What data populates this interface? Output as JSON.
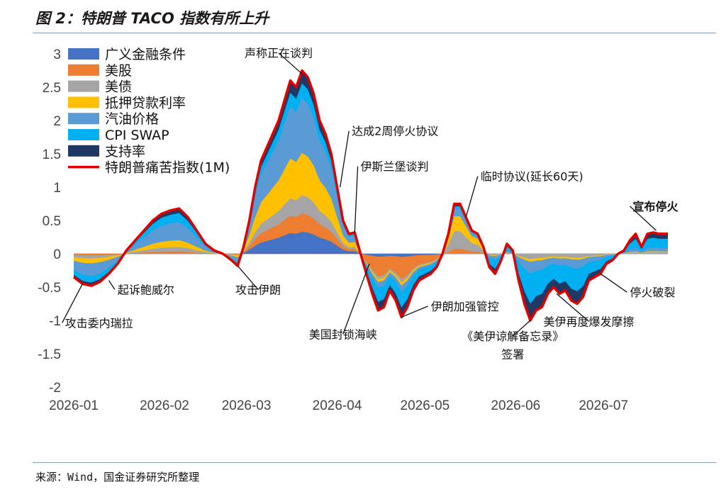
{
  "figure": {
    "title": "图 2：特朗普 TACO 指数有所上升",
    "source": "来源：Wind，国金证券研究所整理"
  },
  "chart_data": {
    "type": "area",
    "ylim": [
      -2,
      3
    ],
    "yticks": [
      "3",
      "2.5",
      "2",
      "1.5",
      "1",
      "0.5",
      "0",
      "-0.5",
      "-1",
      "-1.5",
      "-2"
    ],
    "ytick_values": [
      3,
      2.5,
      2,
      1.5,
      1,
      0.5,
      0,
      -0.5,
      -1,
      -1.5,
      -2
    ],
    "xlim": [
      0,
      203
    ],
    "xticks": [
      {
        "label": "2026-01",
        "x": 0
      },
      {
        "label": "2026-02",
        "x": 31
      },
      {
        "label": "2026-03",
        "x": 59
      },
      {
        "label": "2026-04",
        "x": 90
      },
      {
        "label": "2026-05",
        "x": 120
      },
      {
        "label": "2026-06",
        "x": 151
      },
      {
        "label": "2026-07",
        "x": 181
      }
    ],
    "legend": [
      {
        "name": "广义金融条件",
        "color": "#4472c4"
      },
      {
        "name": "美股",
        "color": "#ed7d31"
      },
      {
        "name": "美债",
        "color": "#a5a5a5"
      },
      {
        "name": "抵押贷款利率",
        "color": "#ffc000"
      },
      {
        "name": "汽油价格",
        "color": "#5b9bd5"
      },
      {
        "name": "CPI SWAP",
        "color": "#00b0f0"
      },
      {
        "name": "支持率",
        "color": "#203864"
      },
      {
        "name": "特朗普痛苦指数(1M)",
        "color": "#e00000",
        "kind": "line"
      }
    ],
    "legend_position": "top-left",
    "total_series_name": "特朗普痛苦指数(1M)",
    "total": [
      [
        0,
        -0.35
      ],
      [
        3,
        -0.45
      ],
      [
        6,
        -0.48
      ],
      [
        9,
        -0.42
      ],
      [
        12,
        -0.3
      ],
      [
        15,
        -0.15
      ],
      [
        18,
        0.05
      ],
      [
        21,
        0.2
      ],
      [
        24,
        0.35
      ],
      [
        27,
        0.5
      ],
      [
        30,
        0.6
      ],
      [
        33,
        0.65
      ],
      [
        36,
        0.68
      ],
      [
        39,
        0.55
      ],
      [
        42,
        0.35
      ],
      [
        45,
        0.15
      ],
      [
        48,
        0.05
      ],
      [
        51,
        0.0
      ],
      [
        54,
        -0.1
      ],
      [
        56,
        -0.18
      ],
      [
        58,
        0.1
      ],
      [
        60,
        0.5
      ],
      [
        62,
        1.0
      ],
      [
        64,
        1.4
      ],
      [
        66,
        1.6
      ],
      [
        68,
        1.8
      ],
      [
        70,
        2.0
      ],
      [
        72,
        2.3
      ],
      [
        74,
        2.6
      ],
      [
        76,
        2.5
      ],
      [
        78,
        2.75
      ],
      [
        80,
        2.65
      ],
      [
        82,
        2.4
      ],
      [
        84,
        2.0
      ],
      [
        86,
        1.8
      ],
      [
        88,
        1.5
      ],
      [
        90,
        1.0
      ],
      [
        92,
        0.5
      ],
      [
        94,
        0.3
      ],
      [
        96,
        0.32
      ],
      [
        98,
        0.0
      ],
      [
        100,
        -0.3
      ],
      [
        102,
        -0.6
      ],
      [
        104,
        -0.85
      ],
      [
        106,
        -0.8
      ],
      [
        108,
        -0.55
      ],
      [
        110,
        -0.7
      ],
      [
        112,
        -0.95
      ],
      [
        114,
        -0.8
      ],
      [
        116,
        -0.55
      ],
      [
        118,
        -0.4
      ],
      [
        120,
        -0.35
      ],
      [
        122,
        -0.3
      ],
      [
        124,
        -0.2
      ],
      [
        126,
        0.0
      ],
      [
        128,
        0.3
      ],
      [
        130,
        0.75
      ],
      [
        132,
        0.75
      ],
      [
        134,
        0.55
      ],
      [
        136,
        0.35
      ],
      [
        138,
        0.3
      ],
      [
        140,
        0.1
      ],
      [
        142,
        -0.2
      ],
      [
        144,
        -0.3
      ],
      [
        146,
        -0.1
      ],
      [
        148,
        0.15
      ],
      [
        150,
        0.05
      ],
      [
        152,
        -0.4
      ],
      [
        154,
        -0.75
      ],
      [
        156,
        -1.0
      ],
      [
        158,
        -0.85
      ],
      [
        160,
        -0.8
      ],
      [
        162,
        -0.6
      ],
      [
        164,
        -0.5
      ],
      [
        166,
        -0.6
      ],
      [
        168,
        -0.55
      ],
      [
        170,
        -0.7
      ],
      [
        172,
        -0.75
      ],
      [
        174,
        -0.65
      ],
      [
        176,
        -0.4
      ],
      [
        178,
        -0.35
      ],
      [
        180,
        -0.3
      ],
      [
        182,
        -0.15
      ],
      [
        184,
        -0.1
      ],
      [
        186,
        0.0
      ],
      [
        188,
        0.05
      ],
      [
        190,
        0.2
      ],
      [
        192,
        0.3
      ],
      [
        194,
        0.1
      ],
      [
        196,
        0.3
      ],
      [
        198,
        0.32
      ],
      [
        200,
        0.3
      ],
      [
        203,
        0.3
      ]
    ],
    "annotations": [
      {
        "text": "声称正在谈判",
        "x": 78,
        "y": 2.7,
        "tx": 70,
        "ty": 2.95,
        "anchor": "middle",
        "bold": false
      },
      {
        "text": "达成2周停火协议",
        "x": 91,
        "y": 1.0,
        "tx": 95,
        "ty": 1.78,
        "anchor": "start",
        "bold": false
      },
      {
        "text": "伊斯兰堡谈判",
        "x": 96,
        "y": 0.32,
        "tx": 98,
        "ty": 1.25,
        "anchor": "start",
        "bold": false
      },
      {
        "text": "临时协议(延长60天)",
        "x": 134,
        "y": 0.55,
        "tx": 139,
        "ty": 1.1,
        "anchor": "start",
        "bold": false
      },
      {
        "text": "宣布停火",
        "x": 199,
        "y": 0.35,
        "tx": 191,
        "ty": 0.65,
        "anchor": "start",
        "bold": true
      },
      {
        "text": "起诉鲍威尔",
        "x": 12,
        "y": -0.4,
        "tx": 15,
        "ty": -0.6,
        "anchor": "start",
        "bold": false
      },
      {
        "text": "攻击委内瑞拉",
        "x": 3,
        "y": -0.45,
        "tx": -3,
        "ty": -1.1,
        "anchor": "start",
        "bold": false
      },
      {
        "text": "攻击伊朗",
        "x": 56,
        "y": -0.18,
        "tx": 63,
        "ty": -0.6,
        "anchor": "middle",
        "bold": false
      },
      {
        "text": "美国封锁海峡",
        "x": 101,
        "y": -0.15,
        "tx": 92,
        "ty": -1.27,
        "anchor": "middle",
        "bold": false
      },
      {
        "text": "伊朗加强管控",
        "x": 112,
        "y": -0.95,
        "tx": 122,
        "ty": -0.85,
        "anchor": "start",
        "bold": false
      },
      {
        "text": "停火破裂",
        "x": 180,
        "y": -0.3,
        "tx": 190,
        "ty": -0.64,
        "anchor": "start",
        "bold": false
      },
      {
        "text": "美伊再度爆发摩擦",
        "x": 165,
        "y": -0.6,
        "tx": 176,
        "ty": -1.08,
        "anchor": "middle",
        "bold": false
      },
      {
        "text": "《美伊谅解备忘录》",
        "x": 156,
        "y": -1.0,
        "tx": 150,
        "ty": -1.3,
        "anchor": "middle",
        "bold": false
      },
      {
        "text": "签署",
        "x": 156,
        "y": -1.0,
        "tx": 150,
        "ty": -1.57,
        "anchor": "middle",
        "bold": false
      }
    ]
  }
}
